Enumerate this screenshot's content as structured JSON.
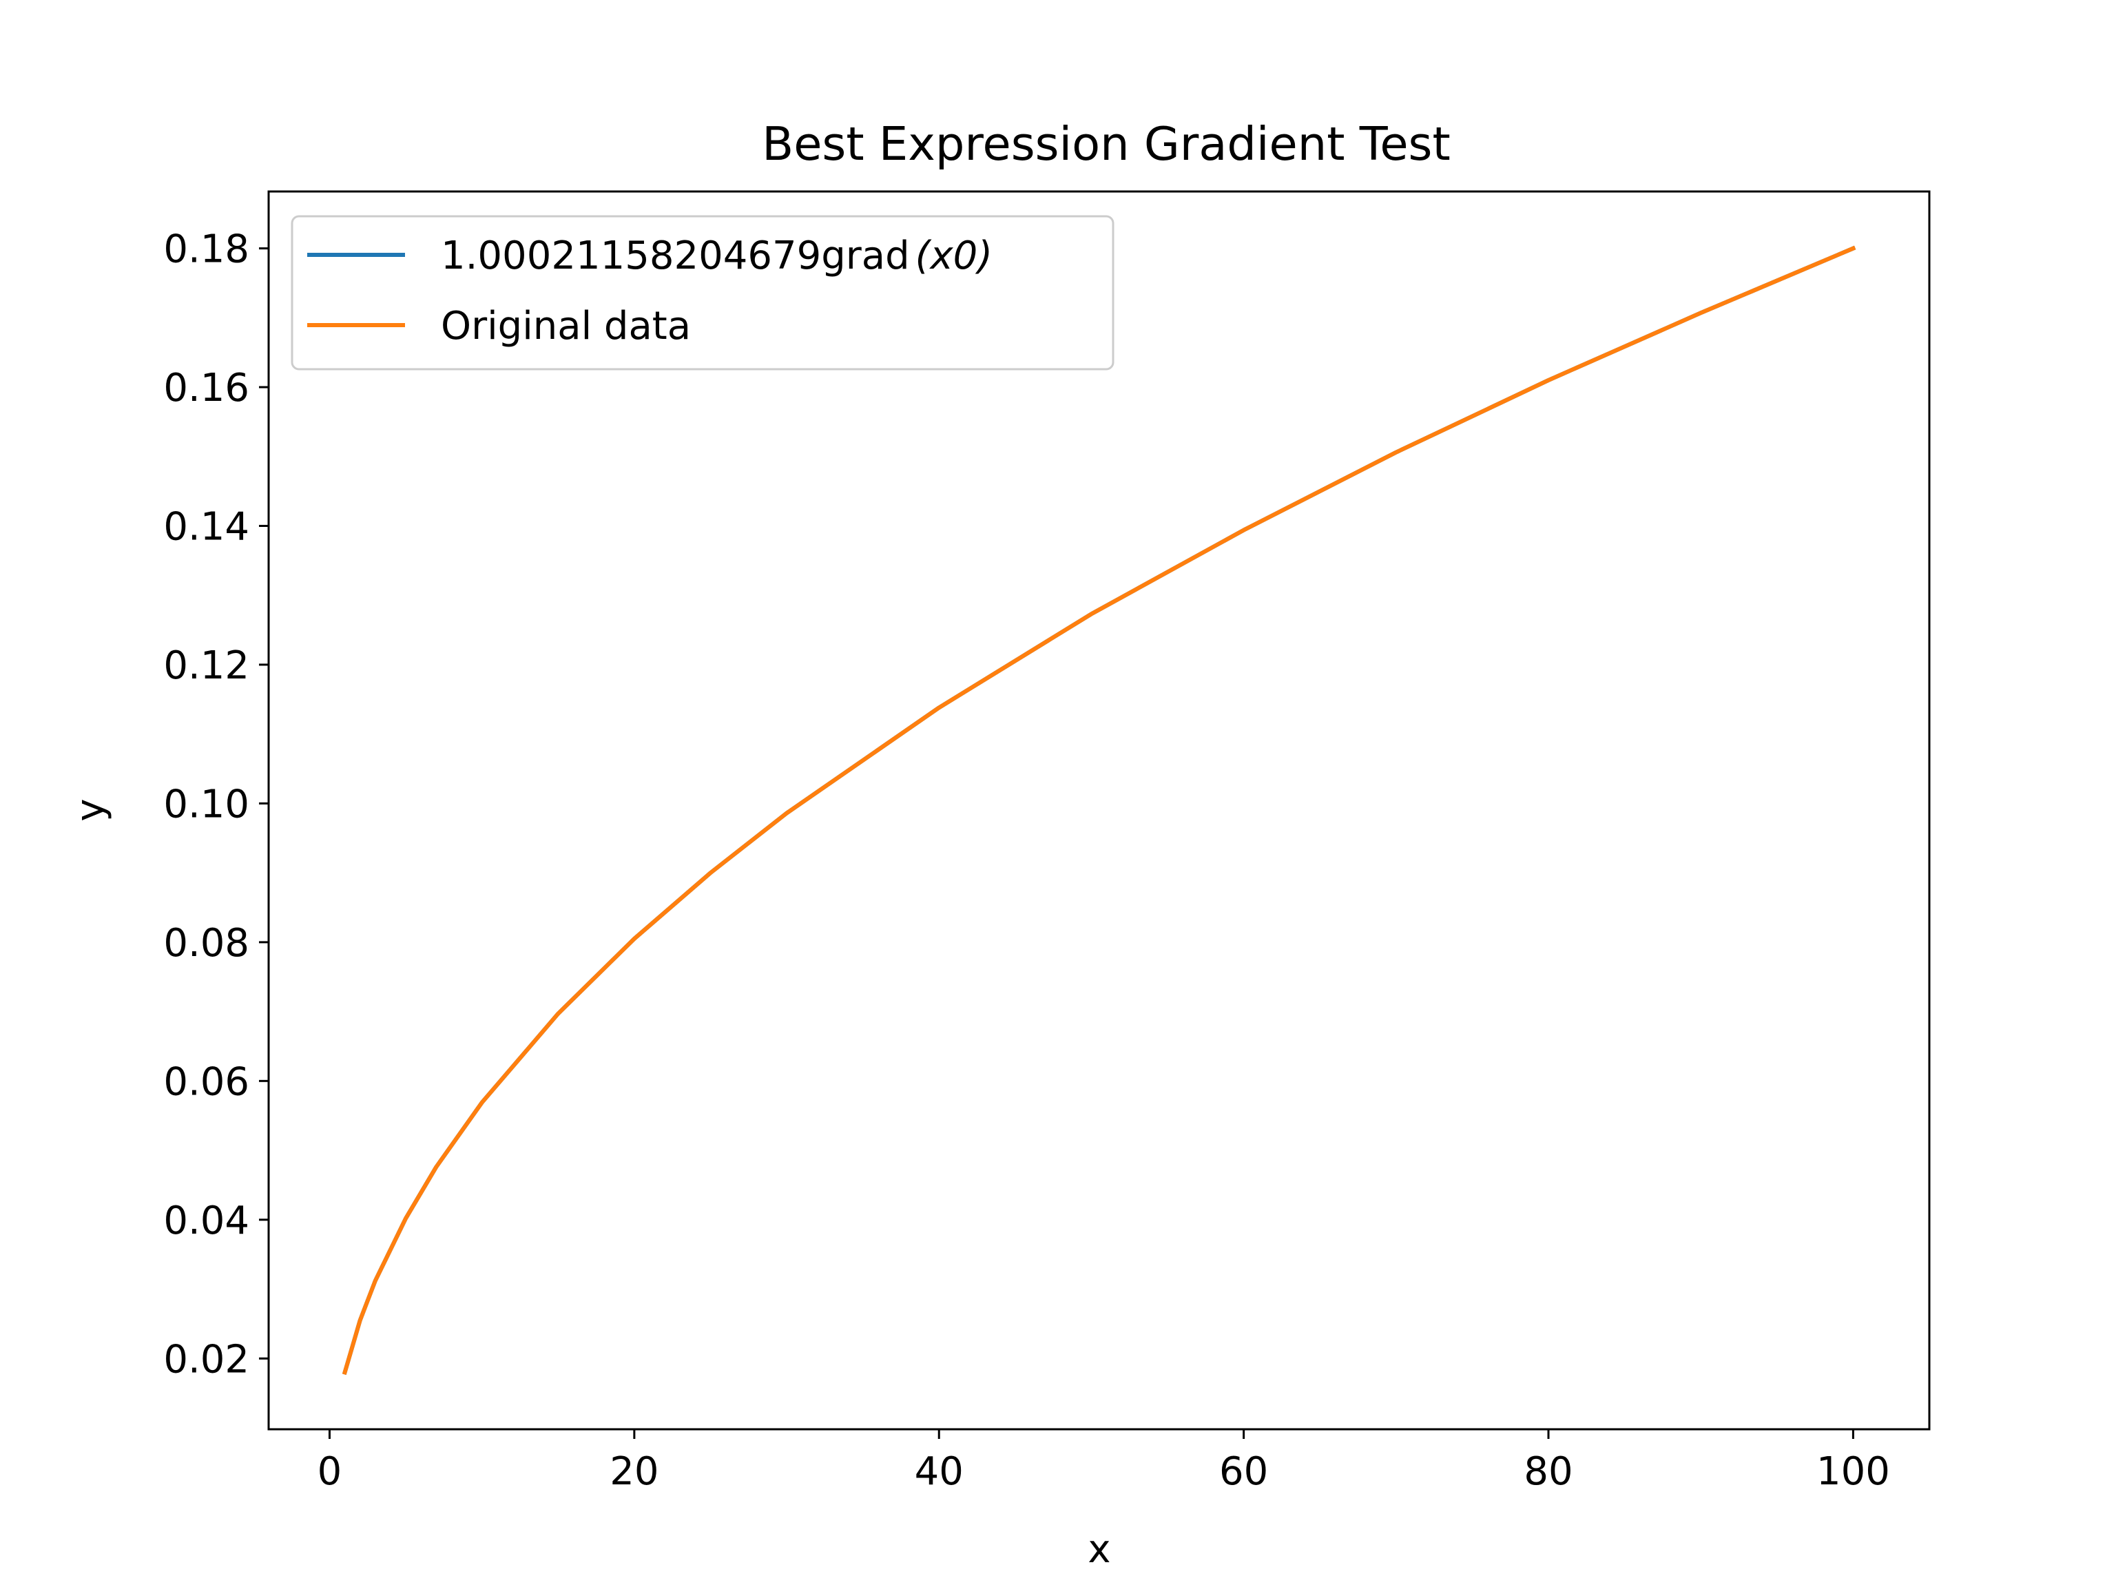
{
  "chart_data": {
    "type": "line",
    "title": "Best Expression Gradient Test",
    "xlabel": "x",
    "ylabel": "y",
    "xlim": [
      -4,
      105
    ],
    "ylim": [
      0.0098,
      0.1882
    ],
    "x_ticks": [
      0,
      20,
      40,
      60,
      80,
      100
    ],
    "x_tick_labels": [
      "0",
      "20",
      "40",
      "60",
      "80",
      "100"
    ],
    "y_ticks": [
      0.02,
      0.04,
      0.06,
      0.08,
      0.1,
      0.12,
      0.14,
      0.16,
      0.18
    ],
    "y_tick_labels": [
      "0.02",
      "0.04",
      "0.06",
      "0.08",
      "0.10",
      "0.12",
      "0.14",
      "0.16",
      "0.18"
    ],
    "grid": false,
    "legend_position": "upper-left",
    "series": [
      {
        "name": "1.00021158204679grad",
        "name_math": "(x0)",
        "color": "#1f77b4",
        "x": [
          1,
          2,
          3,
          5,
          7,
          10,
          15,
          20,
          25,
          30,
          40,
          50,
          60,
          70,
          80,
          90,
          100
        ],
        "y": [
          0.018,
          0.0255,
          0.0312,
          0.0402,
          0.0476,
          0.0569,
          0.0697,
          0.0805,
          0.09,
          0.0986,
          0.1138,
          0.1273,
          0.1394,
          0.1506,
          0.161,
          0.1707,
          0.18
        ]
      },
      {
        "name": "Original data",
        "color": "#ff7f0e",
        "x": [
          1,
          2,
          3,
          5,
          7,
          10,
          15,
          20,
          25,
          30,
          40,
          50,
          60,
          70,
          80,
          90,
          100
        ],
        "y": [
          0.018,
          0.0255,
          0.0312,
          0.0402,
          0.0476,
          0.0569,
          0.0697,
          0.0805,
          0.09,
          0.0986,
          0.1138,
          0.1273,
          0.1394,
          0.1506,
          0.161,
          0.1707,
          0.18
        ]
      }
    ]
  }
}
